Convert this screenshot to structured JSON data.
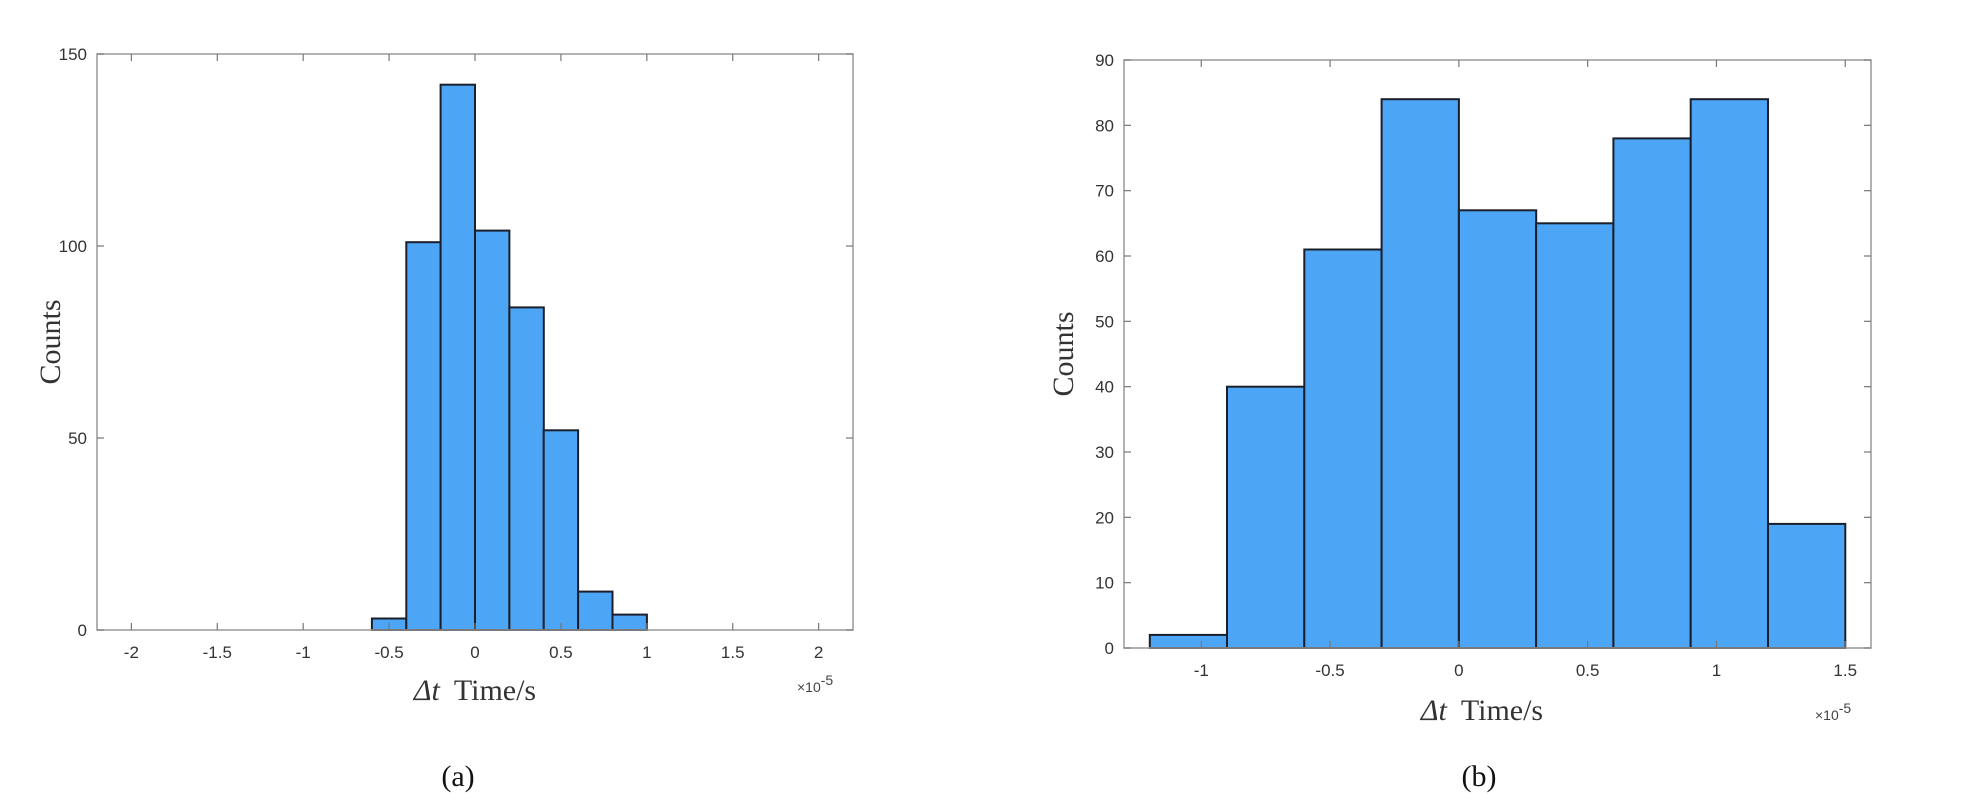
{
  "chart_data": [
    {
      "type": "bar",
      "caption": "(a)",
      "xlabel_symbol": "Δt",
      "xlabel": "Time/s",
      "ylabel": "Counts",
      "x_multiplier": "×10",
      "x_exponent": "-5",
      "xlim": [
        -2.2,
        2.2
      ],
      "ylim": [
        0,
        150
      ],
      "xticks": [
        -2,
        -1.5,
        -1,
        -0.5,
        0,
        0.5,
        1,
        1.5,
        2
      ],
      "xtick_labels": [
        "-2",
        "-1.5",
        "-1",
        "-0.5",
        "0",
        "0.5",
        "1",
        "1.5",
        "2"
      ],
      "yticks": [
        0,
        50,
        100,
        150
      ],
      "ytick_labels": [
        "0",
        "50",
        "100",
        "150"
      ],
      "grid": false,
      "bins": [
        {
          "x0": -0.6,
          "x1": -0.4,
          "value": 3
        },
        {
          "x0": -0.4,
          "x1": -0.2,
          "value": 101
        },
        {
          "x0": -0.2,
          "x1": 0.0,
          "value": 142
        },
        {
          "x0": 0.0,
          "x1": 0.2,
          "value": 104
        },
        {
          "x0": 0.2,
          "x1": 0.4,
          "value": 84
        },
        {
          "x0": 0.4,
          "x1": 0.6,
          "value": 52
        },
        {
          "x0": 0.6,
          "x1": 0.8,
          "value": 10
        },
        {
          "x0": 0.8,
          "x1": 1.0,
          "value": 4
        }
      ],
      "bar_color": "#4da6f5",
      "edge_color": "#1a1f2b"
    },
    {
      "type": "bar",
      "caption": "(b)",
      "xlabel_symbol": "Δt",
      "xlabel": "Time/s",
      "ylabel": "Counts",
      "x_multiplier": "×10",
      "x_exponent": "-5",
      "xlim": [
        -1.3,
        1.6
      ],
      "ylim": [
        0,
        90
      ],
      "xticks": [
        -1,
        -0.5,
        0,
        0.5,
        1,
        1.5
      ],
      "xtick_labels": [
        "-1",
        "-0.5",
        "0",
        "0.5",
        "1",
        "1.5"
      ],
      "yticks": [
        0,
        10,
        20,
        30,
        40,
        50,
        60,
        70,
        80,
        90
      ],
      "ytick_labels": [
        "0",
        "10",
        "20",
        "30",
        "40",
        "50",
        "60",
        "70",
        "80",
        "90"
      ],
      "grid": false,
      "bins": [
        {
          "x0": -1.2,
          "x1": -0.9,
          "value": 2
        },
        {
          "x0": -0.9,
          "x1": -0.6,
          "value": 40
        },
        {
          "x0": -0.6,
          "x1": -0.3,
          "value": 61
        },
        {
          "x0": -0.3,
          "x1": 0.0,
          "value": 84
        },
        {
          "x0": 0.0,
          "x1": 0.3,
          "value": 67
        },
        {
          "x0": 0.3,
          "x1": 0.6,
          "value": 65
        },
        {
          "x0": 0.6,
          "x1": 0.9,
          "value": 78
        },
        {
          "x0": 0.9,
          "x1": 1.2,
          "value": 84
        },
        {
          "x0": 1.2,
          "x1": 1.5,
          "value": 19
        }
      ],
      "bar_color": "#4da6f5",
      "edge_color": "#1a1f2b"
    }
  ]
}
